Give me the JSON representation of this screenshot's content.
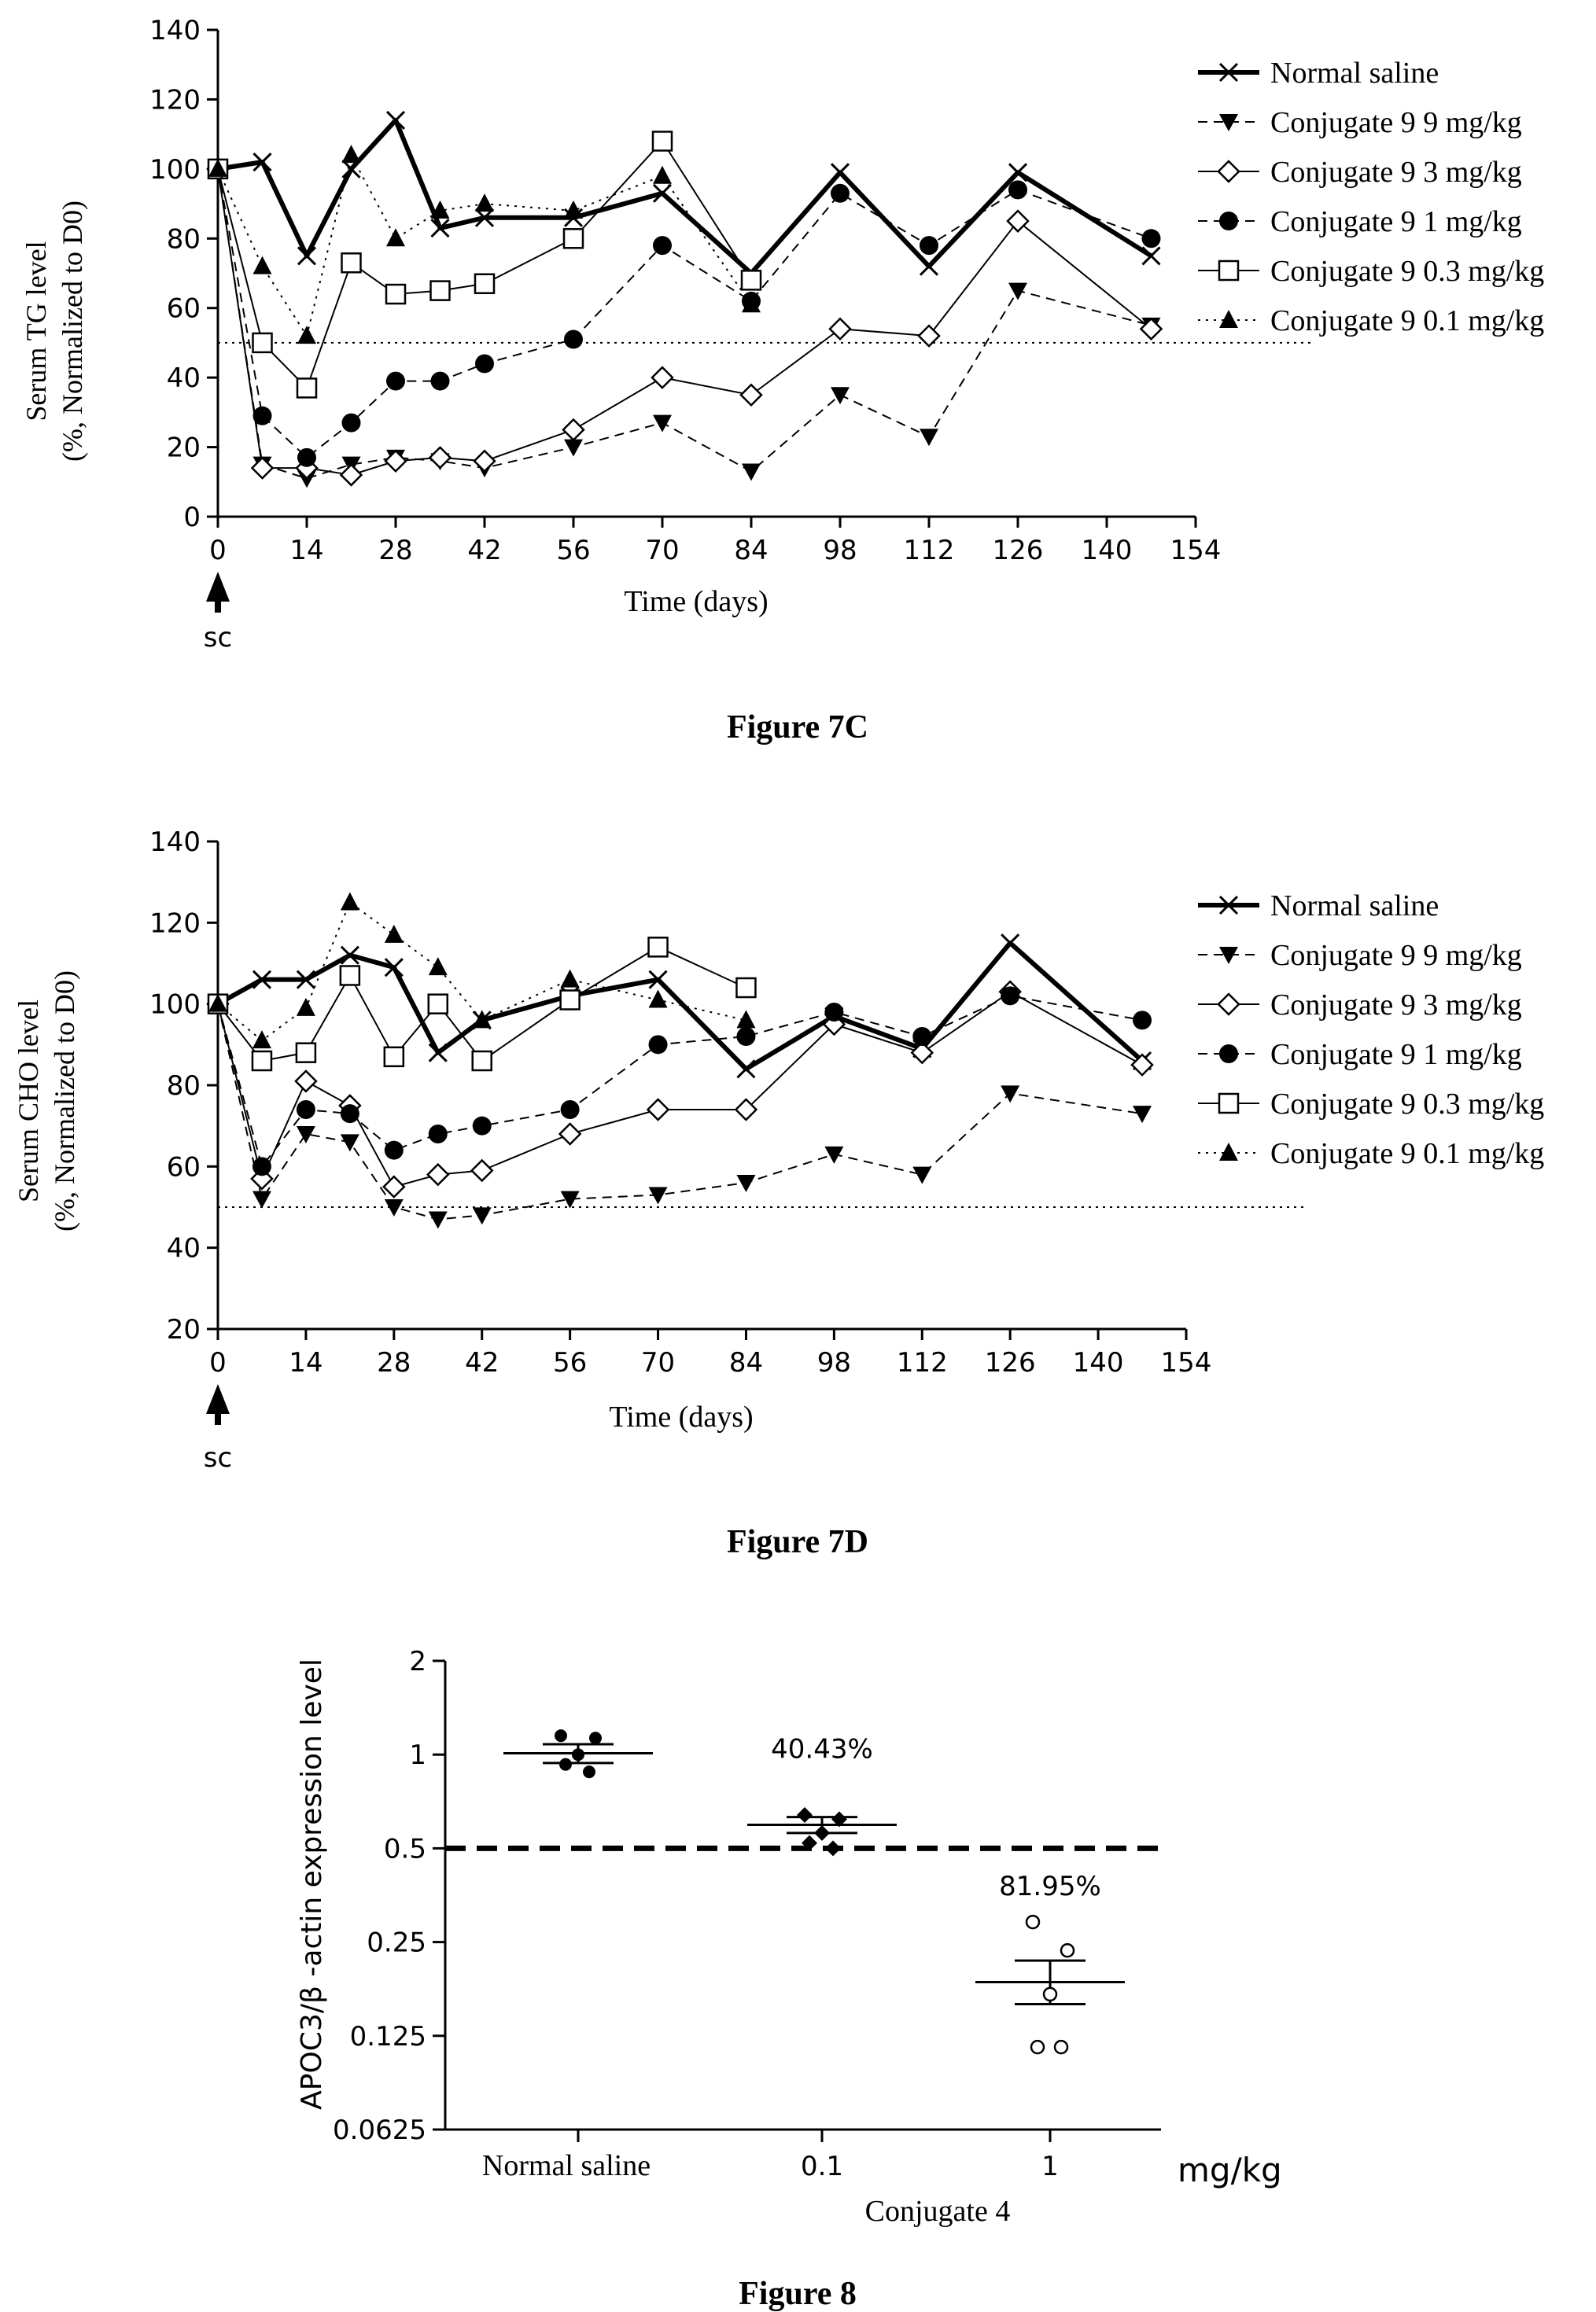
{
  "chart_data": [
    {
      "type": "line",
      "caption": "Figure 7C",
      "ylabel_line1": "Serum TG level",
      "ylabel_line2": "(%, Normalized to D0)",
      "xlabel": "Time (days)",
      "annotation": "sc",
      "x_ticks": [
        0,
        14,
        28,
        42,
        56,
        70,
        84,
        98,
        112,
        126,
        140,
        154
      ],
      "y_ticks": [
        0,
        20,
        40,
        60,
        80,
        100,
        120,
        140
      ],
      "xlim": [
        0,
        154
      ],
      "ylim": [
        0,
        140
      ],
      "reference_line": 50,
      "series": [
        {
          "name": "Normal saline",
          "marker": "x",
          "dash": "solid",
          "width": 6,
          "x": [
            0,
            7,
            14,
            21,
            28,
            35,
            42,
            56,
            70,
            84,
            98,
            112,
            126,
            147
          ],
          "y": [
            100,
            102,
            75,
            100,
            114,
            83,
            86,
            86,
            93,
            70,
            99,
            72,
            99,
            75
          ]
        },
        {
          "name": "Conjugate 9 9 mg/kg",
          "marker": "tri-down",
          "dash": "dashed",
          "width": 2,
          "x": [
            0,
            7,
            14,
            21,
            28,
            35,
            42,
            56,
            70,
            84,
            98,
            112,
            126,
            147
          ],
          "y": [
            100,
            15,
            11,
            15,
            17,
            16,
            14,
            20,
            27,
            13,
            35,
            23,
            65,
            55
          ]
        },
        {
          "name": "Conjugate 9 3 mg/kg",
          "marker": "diamond",
          "dash": "solid",
          "width": 2,
          "x": [
            0,
            7,
            14,
            21,
            28,
            35,
            42,
            56,
            70,
            84,
            98,
            112,
            126,
            147
          ],
          "y": [
            100,
            14,
            14,
            12,
            16,
            17,
            16,
            25,
            40,
            35,
            54,
            52,
            85,
            54
          ]
        },
        {
          "name": "Conjugate 9 1 mg/kg",
          "marker": "circle",
          "dash": "dashed",
          "width": 2,
          "x": [
            0,
            7,
            14,
            21,
            28,
            35,
            42,
            56,
            70,
            84,
            98,
            112,
            126,
            147
          ],
          "y": [
            100,
            29,
            17,
            27,
            39,
            39,
            44,
            51,
            78,
            62,
            93,
            78,
            94,
            80
          ]
        },
        {
          "name": "Conjugate 9 0.3 mg/kg",
          "marker": "square",
          "dash": "solid",
          "width": 2,
          "x": [
            0,
            7,
            14,
            21,
            28,
            35,
            42,
            56,
            70,
            84
          ],
          "y": [
            100,
            50,
            37,
            73,
            64,
            65,
            67,
            80,
            108,
            68
          ]
        },
        {
          "name": "Conjugate 9 0.1 mg/kg",
          "marker": "tri-up",
          "dash": "dotted",
          "width": 2,
          "x": [
            0,
            7,
            14,
            21,
            28,
            35,
            42,
            56,
            70,
            84
          ],
          "y": [
            100,
            72,
            52,
            104,
            80,
            88,
            90,
            88,
            98,
            61
          ]
        }
      ]
    },
    {
      "type": "line",
      "caption": "Figure 7D",
      "ylabel_line1": "Serum CHO level",
      "ylabel_line2": "(%, Normalized to D0)",
      "xlabel": "Time (days)",
      "annotation": "sc",
      "x_ticks": [
        0,
        14,
        28,
        42,
        56,
        70,
        84,
        98,
        112,
        126,
        140,
        154
      ],
      "y_ticks": [
        20,
        40,
        60,
        80,
        100,
        120,
        140
      ],
      "xlim": [
        0,
        154
      ],
      "ylim": [
        20,
        140
      ],
      "reference_line": 50,
      "series": [
        {
          "name": "Normal saline",
          "marker": "x",
          "dash": "solid",
          "width": 6,
          "x": [
            0,
            7,
            14,
            21,
            28,
            35,
            42,
            56,
            70,
            84,
            98,
            112,
            126,
            147
          ],
          "y": [
            100,
            106,
            106,
            112,
            109,
            88,
            96,
            102,
            106,
            84,
            97,
            89,
            115,
            86
          ]
        },
        {
          "name": "Conjugate 9 9 mg/kg",
          "marker": "tri-down",
          "dash": "dashed",
          "width": 2,
          "x": [
            0,
            7,
            14,
            21,
            28,
            35,
            42,
            56,
            70,
            84,
            98,
            112,
            126,
            147
          ],
          "y": [
            100,
            52,
            68,
            66,
            50,
            47,
            48,
            52,
            53,
            56,
            63,
            58,
            78,
            73
          ]
        },
        {
          "name": "Conjugate 9 3 mg/kg",
          "marker": "diamond",
          "dash": "solid",
          "width": 2,
          "x": [
            0,
            7,
            14,
            21,
            28,
            35,
            42,
            56,
            70,
            84,
            98,
            112,
            126,
            147
          ],
          "y": [
            100,
            57,
            81,
            75,
            55,
            58,
            59,
            68,
            74,
            74,
            95,
            88,
            103,
            85
          ]
        },
        {
          "name": "Conjugate 9 1 mg/kg",
          "marker": "circle",
          "dash": "dashed",
          "width": 2,
          "x": [
            0,
            7,
            14,
            21,
            28,
            35,
            42,
            56,
            70,
            84,
            98,
            112,
            126,
            147
          ],
          "y": [
            100,
            60,
            74,
            73,
            64,
            68,
            70,
            74,
            90,
            92,
            98,
            92,
            102,
            96
          ]
        },
        {
          "name": "Conjugate 9 0.3 mg/kg",
          "marker": "square",
          "dash": "solid",
          "width": 2,
          "x": [
            0,
            7,
            14,
            21,
            28,
            35,
            42,
            56,
            70,
            84
          ],
          "y": [
            100,
            86,
            88,
            107,
            87,
            100,
            86,
            101,
            114,
            104
          ]
        },
        {
          "name": "Conjugate 9 0.1 mg/kg",
          "marker": "tri-up",
          "dash": "dotted",
          "width": 2,
          "x": [
            0,
            7,
            14,
            21,
            28,
            35,
            42,
            56,
            70,
            84
          ],
          "y": [
            100,
            91,
            99,
            125,
            117,
            109,
            96,
            106,
            101,
            96
          ]
        }
      ]
    },
    {
      "type": "scatter",
      "caption": "Figure 8",
      "ylabel": "APOC3/β -actin expression level",
      "y_scale": "log2",
      "y_tick_labels": [
        "2",
        "1",
        "0.5",
        "0.25",
        "0.125",
        "0.0625"
      ],
      "y_tick_values": [
        2,
        1,
        0.5,
        0.25,
        0.125,
        0.0625
      ],
      "ylim": [
        0.0625,
        2
      ],
      "reference_line": 0.5,
      "group_label": "Conjugate 4",
      "unit_label": "mg/kg",
      "groups": [
        {
          "label": "Normal saline",
          "marker": "filled-circle",
          "values": [
            1.15,
            1.13,
            1.0,
            0.93,
            0.88
          ],
          "mean": 1.01,
          "sem_low": 0.94,
          "sem_high": 1.08,
          "annotation": ""
        },
        {
          "label": "0.1",
          "marker": "filled-diamond",
          "values": [
            0.64,
            0.62,
            0.56,
            0.52,
            0.5
          ],
          "mean": 0.595,
          "sem_low": 0.56,
          "sem_high": 0.63,
          "annotation": "40.43%"
        },
        {
          "label": "1",
          "marker": "open-circle",
          "values": [
            0.29,
            0.235,
            0.17,
            0.115,
            0.115
          ],
          "mean": 0.186,
          "sem_low": 0.158,
          "sem_high": 0.218,
          "annotation": "81.95%"
        }
      ]
    }
  ]
}
